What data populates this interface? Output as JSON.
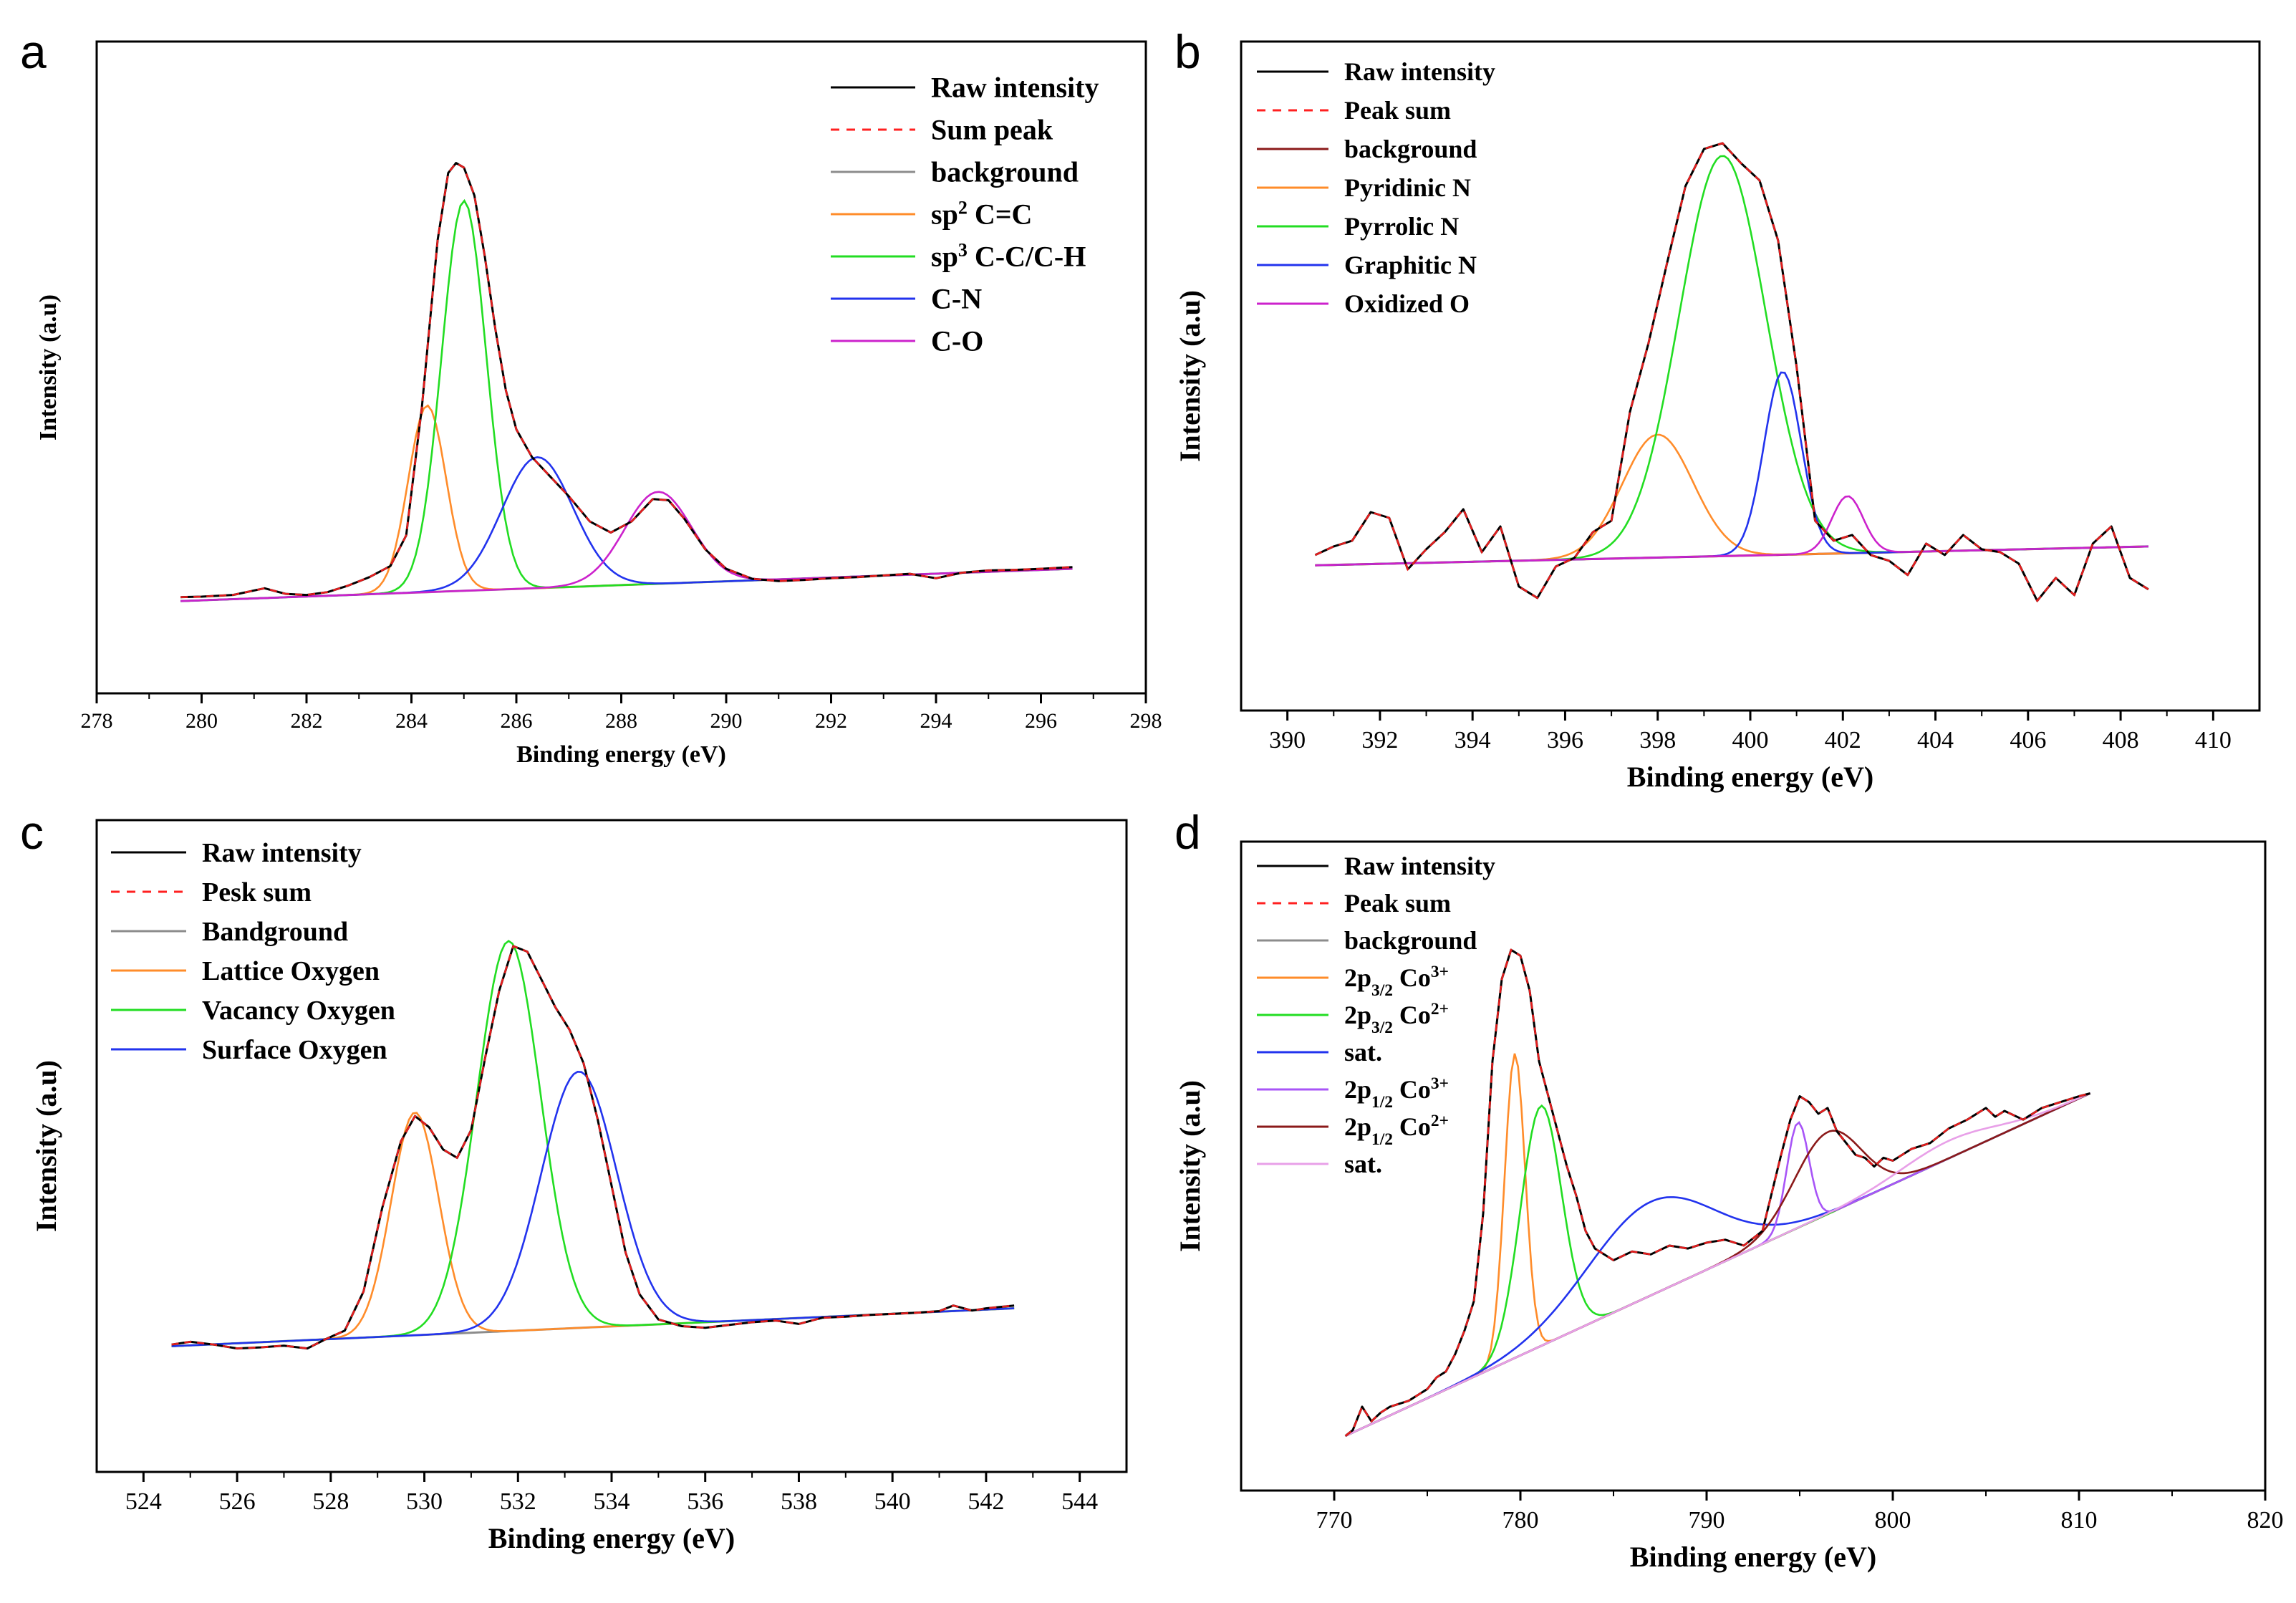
{
  "chart_data": [
    {
      "panel": "a",
      "type": "line",
      "xlabel": "Binding energy (eV)",
      "ylabel": "Intensity (a.u)",
      "xlim": [
        278,
        298
      ],
      "xticks": [
        278,
        280,
        282,
        284,
        286,
        288,
        290,
        292,
        294,
        296,
        298
      ],
      "ylim": [
        0,
        1
      ],
      "yticks_shown": false,
      "legend_position": "top-right",
      "legend": [
        {
          "label": "Raw intensity",
          "color": "#000000",
          "dash": false
        },
        {
          "label": "Sum peak",
          "color": "#ff2020",
          "dash": true
        },
        {
          "label": "background",
          "color": "#8c8c8c",
          "dash": false
        },
        {
          "label": "sp2 C=C",
          "color": "#ff8c2a",
          "dash": false,
          "sup": "2",
          "pre": "sp",
          "post": " C=C"
        },
        {
          "label": "sp3 C-C/C-H",
          "color": "#22dd22",
          "dash": false,
          "sup": "3",
          "pre": "sp",
          "post": " C-C/C-H"
        },
        {
          "label": "C-N",
          "color": "#2233ee",
          "dash": false
        },
        {
          "label": "C-O",
          "color": "#cc22cc",
          "dash": false
        }
      ],
      "raw_points": [
        [
          279.6,
          0.079
        ],
        [
          280,
          0.08
        ],
        [
          280.6,
          0.083
        ],
        [
          281.2,
          0.095
        ],
        [
          281.6,
          0.085
        ],
        [
          282,
          0.083
        ],
        [
          282.4,
          0.088
        ],
        [
          282.8,
          0.1
        ],
        [
          283.2,
          0.115
        ],
        [
          283.6,
          0.135
        ],
        [
          283.9,
          0.19
        ],
        [
          284.2,
          0.42
        ],
        [
          284.5,
          0.72
        ],
        [
          284.7,
          0.84
        ],
        [
          284.85,
          0.858
        ],
        [
          285,
          0.85
        ],
        [
          285.2,
          0.8
        ],
        [
          285.4,
          0.69
        ],
        [
          285.6,
          0.56
        ],
        [
          285.8,
          0.45
        ],
        [
          286,
          0.38
        ],
        [
          286.3,
          0.33
        ],
        [
          286.6,
          0.3
        ],
        [
          287,
          0.26
        ],
        [
          287.4,
          0.215
        ],
        [
          287.8,
          0.195
        ],
        [
          288.2,
          0.215
        ],
        [
          288.6,
          0.255
        ],
        [
          288.9,
          0.253
        ],
        [
          289.2,
          0.22
        ],
        [
          289.6,
          0.165
        ],
        [
          290,
          0.13
        ],
        [
          290.5,
          0.112
        ],
        [
          291,
          0.108
        ],
        [
          291.5,
          0.11
        ],
        [
          292,
          0.113
        ],
        [
          292.5,
          0.115
        ],
        [
          293,
          0.118
        ],
        [
          293.5,
          0.121
        ],
        [
          294,
          0.113
        ],
        [
          294.5,
          0.123
        ],
        [
          295,
          0.127
        ],
        [
          295.5,
          0.128
        ],
        [
          296,
          0.13
        ],
        [
          296.6,
          0.133
        ]
      ],
      "background": {
        "x0": 279.6,
        "x1": 296.6,
        "y0": 0.072,
        "y1": 0.13
      },
      "peaks": [
        {
          "name": "sp2 C=C",
          "center": 284.3,
          "height": 0.335,
          "fwhm": 0.85
        },
        {
          "name": "sp3 C-C/C-H",
          "center": 285.0,
          "height": 0.7,
          "fwhm": 1.0
        },
        {
          "name": "C-N",
          "center": 286.4,
          "height": 0.235,
          "fwhm": 1.6
        },
        {
          "name": "C-O",
          "center": 288.7,
          "height": 0.165,
          "fwhm": 1.5
        }
      ]
    },
    {
      "panel": "b",
      "type": "line",
      "xlabel": "Binding energy (eV)",
      "ylabel": "Intensity (a.u)",
      "xlim": [
        389,
        411
      ],
      "xticks": [
        390,
        392,
        394,
        396,
        398,
        400,
        402,
        404,
        406,
        408,
        410
      ],
      "ylim": [
        0,
        1
      ],
      "yticks_shown": false,
      "legend_position": "top-left",
      "legend": [
        {
          "label": "Raw intensity",
          "color": "#000000",
          "dash": false
        },
        {
          "label": "Peak sum",
          "color": "#ff2020",
          "dash": true
        },
        {
          "label": "background",
          "color": "#8b1a1a",
          "dash": false
        },
        {
          "label": "Pyridinic N",
          "color": "#ff8c2a",
          "dash": false
        },
        {
          "label": "Pyrrolic N",
          "color": "#22dd22",
          "dash": false
        },
        {
          "label": "Graphitic N",
          "color": "#2233ee",
          "dash": false
        },
        {
          "label": "Oxidized O",
          "color": "#cc22cc",
          "dash": false
        }
      ],
      "raw_points": [
        [
          390.6,
          0.19
        ],
        [
          391,
          0.205
        ],
        [
          391.4,
          0.215
        ],
        [
          391.8,
          0.265
        ],
        [
          392.2,
          0.255
        ],
        [
          392.6,
          0.165
        ],
        [
          393,
          0.2
        ],
        [
          393.4,
          0.23
        ],
        [
          393.8,
          0.27
        ],
        [
          394.2,
          0.195
        ],
        [
          394.6,
          0.24
        ],
        [
          395,
          0.135
        ],
        [
          395.4,
          0.115
        ],
        [
          395.8,
          0.17
        ],
        [
          396.2,
          0.185
        ],
        [
          396.6,
          0.23
        ],
        [
          397,
          0.25
        ],
        [
          397.4,
          0.44
        ],
        [
          397.8,
          0.56
        ],
        [
          398.2,
          0.7
        ],
        [
          398.6,
          0.835
        ],
        [
          399,
          0.9
        ],
        [
          399.4,
          0.91
        ],
        [
          399.8,
          0.875
        ],
        [
          400.2,
          0.845
        ],
        [
          400.6,
          0.74
        ],
        [
          401,
          0.52
        ],
        [
          401.4,
          0.25
        ],
        [
          401.8,
          0.215
        ],
        [
          402.2,
          0.225
        ],
        [
          402.6,
          0.19
        ],
        [
          403,
          0.18
        ],
        [
          403.4,
          0.155
        ],
        [
          403.8,
          0.21
        ],
        [
          404.2,
          0.19
        ],
        [
          404.6,
          0.225
        ],
        [
          405,
          0.2
        ],
        [
          405.4,
          0.195
        ],
        [
          405.8,
          0.175
        ],
        [
          406.2,
          0.11
        ],
        [
          406.6,
          0.15
        ],
        [
          407,
          0.12
        ],
        [
          407.4,
          0.21
        ],
        [
          407.8,
          0.24
        ],
        [
          408.2,
          0.15
        ],
        [
          408.6,
          0.13
        ]
      ],
      "background": {
        "x0": 390.6,
        "x1": 408.6,
        "y0": 0.172,
        "y1": 0.205
      },
      "peaks": [
        {
          "name": "Pyridinic N",
          "center": 398.0,
          "height": 0.215,
          "fwhm": 1.8
        },
        {
          "name": "Pyrrolic N",
          "center": 399.4,
          "height": 0.7,
          "fwhm": 2.2
        },
        {
          "name": "Graphitic N",
          "center": 400.7,
          "height": 0.32,
          "fwhm": 0.95
        },
        {
          "name": "Oxidized O",
          "center": 402.1,
          "height": 0.1,
          "fwhm": 0.8
        }
      ]
    },
    {
      "panel": "c",
      "type": "line",
      "xlabel": "Binding energy (eV)",
      "ylabel": "Intensity (a.u)",
      "xlim": [
        523,
        545
      ],
      "xticks": [
        524,
        526,
        528,
        530,
        532,
        534,
        536,
        538,
        540,
        542,
        544
      ],
      "ylim": [
        0,
        1
      ],
      "yticks_shown": false,
      "legend_position": "top-left",
      "legend": [
        {
          "label": "Raw intensity",
          "color": "#000000",
          "dash": false
        },
        {
          "label": "Pesk sum",
          "color": "#ff2020",
          "dash": true
        },
        {
          "label": "Bandground",
          "color": "#8c8c8c",
          "dash": false
        },
        {
          "label": "Lattice Oxygen",
          "color": "#ff8c2a",
          "dash": false
        },
        {
          "label": "Vacancy Oxygen",
          "color": "#22dd22",
          "dash": false
        },
        {
          "label": "Surface Oxygen",
          "color": "#2233ee",
          "dash": false
        }
      ],
      "raw_points": [
        [
          524.6,
          0.135
        ],
        [
          525,
          0.14
        ],
        [
          525.5,
          0.135
        ],
        [
          526,
          0.128
        ],
        [
          526.5,
          0.13
        ],
        [
          527,
          0.133
        ],
        [
          527.5,
          0.128
        ],
        [
          527.9,
          0.145
        ],
        [
          528.3,
          0.16
        ],
        [
          528.7,
          0.23
        ],
        [
          529.1,
          0.38
        ],
        [
          529.5,
          0.5
        ],
        [
          529.8,
          0.545
        ],
        [
          530.1,
          0.525
        ],
        [
          530.4,
          0.485
        ],
        [
          530.7,
          0.47
        ],
        [
          531,
          0.52
        ],
        [
          531.3,
          0.65
        ],
        [
          531.6,
          0.77
        ],
        [
          531.9,
          0.85
        ],
        [
          532.2,
          0.84
        ],
        [
          532.5,
          0.79
        ],
        [
          532.8,
          0.74
        ],
        [
          533.1,
          0.7
        ],
        [
          533.4,
          0.64
        ],
        [
          533.7,
          0.54
        ],
        [
          534,
          0.42
        ],
        [
          534.3,
          0.3
        ],
        [
          534.6,
          0.225
        ],
        [
          535,
          0.18
        ],
        [
          535.5,
          0.168
        ],
        [
          536,
          0.165
        ],
        [
          536.5,
          0.17
        ],
        [
          537,
          0.175
        ],
        [
          537.5,
          0.178
        ],
        [
          538,
          0.172
        ],
        [
          538.5,
          0.183
        ],
        [
          539,
          0.185
        ],
        [
          539.5,
          0.188
        ],
        [
          540,
          0.19
        ],
        [
          540.5,
          0.192
        ],
        [
          541,
          0.195
        ],
        [
          541.3,
          0.205
        ],
        [
          541.7,
          0.196
        ],
        [
          542,
          0.2
        ],
        [
          542.6,
          0.205
        ]
      ],
      "background": {
        "x0": 524.6,
        "x1": 542.6,
        "y0": 0.132,
        "y1": 0.2
      },
      "peaks": [
        {
          "name": "Lattice Oxygen",
          "center": 529.8,
          "height": 0.4,
          "fwhm": 1.2
        },
        {
          "name": "Vacancy Oxygen",
          "center": 531.8,
          "height": 0.7,
          "fwhm": 1.6
        },
        {
          "name": "Surface Oxygen",
          "center": 533.3,
          "height": 0.46,
          "fwhm": 1.9
        }
      ]
    },
    {
      "panel": "d",
      "type": "line",
      "xlabel": "Binding energy (eV)",
      "ylabel": "Intensity (a.u)",
      "xlim": [
        765,
        820
      ],
      "xticks": [
        770,
        780,
        790,
        800,
        810,
        820
      ],
      "ylim": [
        0,
        1
      ],
      "yticks_shown": false,
      "legend_position": "top-left",
      "legend": [
        {
          "label": "Raw intensity",
          "color": "#000000",
          "dash": false
        },
        {
          "label": "Peak sum",
          "color": "#ff2020",
          "dash": true
        },
        {
          "label": "background",
          "color": "#8c8c8c",
          "dash": false
        },
        {
          "label": "2p3/2 Co3+",
          "color": "#ff8c2a",
          "dash": false,
          "base": "2p",
          "sub": "3/2",
          "mid": " Co",
          "sup": "3+"
        },
        {
          "label": "2p3/2 Co2+",
          "color": "#22dd22",
          "dash": false,
          "base": "2p",
          "sub": "3/2",
          "mid": " Co",
          "sup": "2+"
        },
        {
          "label": "sat.",
          "color": "#2233ee",
          "dash": false
        },
        {
          "label": "2p1/2 Co3+",
          "color": "#a855f7",
          "dash": false,
          "base": "2p",
          "sub": "1/2",
          "mid": " Co",
          "sup": "3+"
        },
        {
          "label": "2p1/2 Co2+",
          "color": "#8b1a1a",
          "dash": false,
          "base": "2p",
          "sub": "1/2",
          "mid": " Co",
          "sup": "2+"
        },
        {
          "label": "sat.",
          "color": "#e8a0e8",
          "dash": false
        }
      ],
      "raw_points": [
        [
          770.6,
          0.06
        ],
        [
          771,
          0.07
        ],
        [
          771.5,
          0.11
        ],
        [
          772,
          0.085
        ],
        [
          772.5,
          0.1
        ],
        [
          773,
          0.11
        ],
        [
          773.5,
          0.115
        ],
        [
          774,
          0.12
        ],
        [
          774.5,
          0.13
        ],
        [
          775,
          0.14
        ],
        [
          775.5,
          0.16
        ],
        [
          776,
          0.17
        ],
        [
          776.5,
          0.2
        ],
        [
          777,
          0.24
        ],
        [
          777.5,
          0.29
        ],
        [
          778,
          0.44
        ],
        [
          778.5,
          0.7
        ],
        [
          779,
          0.84
        ],
        [
          779.5,
          0.89
        ],
        [
          780,
          0.88
        ],
        [
          780.5,
          0.82
        ],
        [
          781,
          0.7
        ],
        [
          781.5,
          0.64
        ],
        [
          782,
          0.58
        ],
        [
          782.5,
          0.52
        ],
        [
          783,
          0.47
        ],
        [
          783.5,
          0.41
        ],
        [
          784,
          0.38
        ],
        [
          785,
          0.36
        ],
        [
          786,
          0.375
        ],
        [
          787,
          0.37
        ],
        [
          788,
          0.385
        ],
        [
          789,
          0.38
        ],
        [
          790,
          0.39
        ],
        [
          791,
          0.395
        ],
        [
          792,
          0.385
        ],
        [
          793,
          0.41
        ],
        [
          794,
          0.54
        ],
        [
          794.5,
          0.6
        ],
        [
          795,
          0.64
        ],
        [
          795.5,
          0.63
        ],
        [
          796,
          0.61
        ],
        [
          796.5,
          0.62
        ],
        [
          797,
          0.58
        ],
        [
          797.5,
          0.56
        ],
        [
          798,
          0.54
        ],
        [
          798.5,
          0.535
        ],
        [
          799,
          0.52
        ],
        [
          799.5,
          0.535
        ],
        [
          800,
          0.53
        ],
        [
          801,
          0.55
        ],
        [
          802,
          0.56
        ],
        [
          803,
          0.585
        ],
        [
          804,
          0.6
        ],
        [
          805,
          0.62
        ],
        [
          805.5,
          0.605
        ],
        [
          806,
          0.615
        ],
        [
          807,
          0.6
        ],
        [
          808,
          0.62
        ],
        [
          809,
          0.63
        ],
        [
          810,
          0.64
        ],
        [
          810.6,
          0.645
        ]
      ],
      "background": {
        "x0": 770.6,
        "x1": 810.6,
        "y0": 0.06,
        "y1": 0.645
      },
      "peaks": [
        {
          "name": "2p3/2 Co3+",
          "center": 779.7,
          "height": 0.52,
          "fwhm": 1.3
        },
        {
          "name": "2p3/2 Co2+",
          "center": 781.1,
          "height": 0.41,
          "fwhm": 2.6
        },
        {
          "name": "sat.",
          "center": 787.0,
          "height": 0.16,
          "fwhm": 8.0
        },
        {
          "name": "2p1/2 Co3+",
          "center": 794.9,
          "height": 0.18,
          "fwhm": 1.4
        },
        {
          "name": "2p1/2 Co2+",
          "center": 796.5,
          "height": 0.14,
          "fwhm": 4.2
        },
        {
          "name": "sat.",
          "center": 803.0,
          "height": 0.03,
          "fwhm": 6.0
        }
      ]
    }
  ]
}
